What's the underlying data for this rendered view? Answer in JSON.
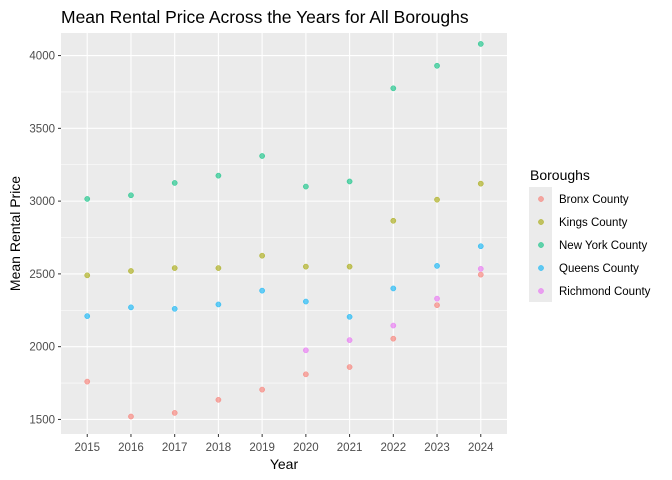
{
  "chart_data": {
    "type": "scatter",
    "title": "Mean Rental Price Across the Years for All Boroughs",
    "xlabel": "Year",
    "ylabel": "Mean Rental Price",
    "x_ticks": [
      "2015",
      "2016",
      "2017",
      "2018",
      "2019",
      "2020",
      "2021",
      "2022",
      "2023",
      "2024"
    ],
    "y_ticks": [
      1500,
      2000,
      2500,
      3000,
      3500,
      4000
    ],
    "xlim": [
      2014.4,
      2024.6
    ],
    "ylim": [
      1400,
      4155
    ],
    "grid": true,
    "legend": {
      "title": "Boroughs",
      "position": "right"
    },
    "series": [
      {
        "name": "Bronx County",
        "color": "#F8766D",
        "points": [
          [
            2015,
            1760
          ],
          [
            2016,
            1520
          ],
          [
            2017,
            1545
          ],
          [
            2018,
            1635
          ],
          [
            2019,
            1705
          ],
          [
            2020,
            1810
          ],
          [
            2021,
            1860
          ],
          [
            2022,
            2055
          ],
          [
            2023,
            2285
          ],
          [
            2024,
            2495
          ]
        ]
      },
      {
        "name": "Kings County",
        "color": "#A3A500",
        "points": [
          [
            2015,
            2490
          ],
          [
            2016,
            2520
          ],
          [
            2017,
            2540
          ],
          [
            2018,
            2540
          ],
          [
            2019,
            2625
          ],
          [
            2020,
            2550
          ],
          [
            2021,
            2550
          ],
          [
            2022,
            2865
          ],
          [
            2023,
            3010
          ],
          [
            2024,
            3120
          ]
        ]
      },
      {
        "name": "New York County",
        "color": "#00BF7D",
        "points": [
          [
            2015,
            3015
          ],
          [
            2016,
            3040
          ],
          [
            2017,
            3125
          ],
          [
            2018,
            3175
          ],
          [
            2019,
            3310
          ],
          [
            2020,
            3100
          ],
          [
            2021,
            3135
          ],
          [
            2022,
            3775
          ],
          [
            2023,
            3930
          ],
          [
            2024,
            4080
          ]
        ]
      },
      {
        "name": "Queens County",
        "color": "#00B0F6",
        "points": [
          [
            2015,
            2210
          ],
          [
            2016,
            2270
          ],
          [
            2017,
            2260
          ],
          [
            2018,
            2290
          ],
          [
            2019,
            2385
          ],
          [
            2020,
            2310
          ],
          [
            2021,
            2205
          ],
          [
            2022,
            2400
          ],
          [
            2023,
            2555
          ],
          [
            2024,
            2690
          ]
        ]
      },
      {
        "name": "Richmond County",
        "color": "#E76BF3",
        "points": [
          [
            2020,
            1975
          ],
          [
            2021,
            2045
          ],
          [
            2022,
            2145
          ],
          [
            2023,
            2330
          ],
          [
            2024,
            2535
          ]
        ]
      }
    ]
  }
}
